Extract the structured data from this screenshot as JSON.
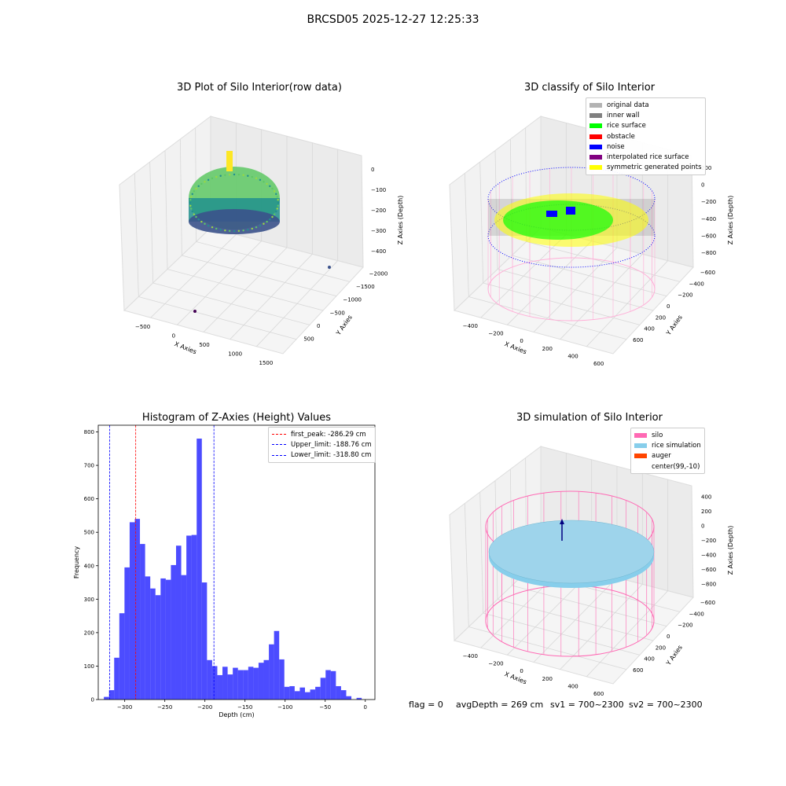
{
  "suptitle": "BRCSD05 2025-12-27 12:25:33",
  "footer": {
    "flag": "flag = 0",
    "avg": "avgDepth = 269 cm",
    "sv1": "sv1 = 700~2300",
    "sv2": "sv2 = 700~2300"
  },
  "panel1": {
    "title": "3D Plot of Silo Interior(row data)",
    "xlabel": "X Axies",
    "ylabel": "Y Axies",
    "zlabel": "Z Axies (Depth)",
    "xticks": [
      "−500",
      "0",
      "500",
      "1000",
      "1500"
    ],
    "yticks": [
      "500",
      "0",
      "−500",
      "−1000",
      "−1500",
      "−2000"
    ],
    "zticks": [
      "0",
      "−100",
      "−200",
      "−300",
      "−400"
    ]
  },
  "panel2": {
    "title": "3D classify of Silo Interior",
    "xlabel": "X Axies",
    "ylabel": "Y Axies",
    "zlabel": "Z Axies (Depth)",
    "xticks": [
      "−400",
      "−200",
      "0",
      "200",
      "400",
      "600"
    ],
    "yticks": [
      "600",
      "400",
      "200",
      "0",
      "−200",
      "−400",
      "−600"
    ],
    "zticks": [
      "200",
      "0",
      "−200",
      "−400",
      "−600",
      "−800"
    ],
    "legend": [
      {
        "label": "original data",
        "color": "#b3b3b3"
      },
      {
        "label": "inner wall",
        "color": "#808080"
      },
      {
        "label": "rice surface",
        "color": "#00ff00"
      },
      {
        "label": "obstacle",
        "color": "#ff0000"
      },
      {
        "label": "noise",
        "color": "#0000ff"
      },
      {
        "label": "interpolated rice surface",
        "color": "#800080"
      },
      {
        "label": "symmetric generated points",
        "color": "#ffff00"
      }
    ]
  },
  "panel4": {
    "title": "3D simulation of Silo Interior",
    "xlabel": "X Axies",
    "ylabel": "Y Axies",
    "zlabel": "Z Axies (Depth)",
    "xticks": [
      "−400",
      "−200",
      "0",
      "200",
      "400",
      "600"
    ],
    "yticks": [
      "600",
      "400",
      "200",
      "0",
      "−200",
      "−400",
      "−600"
    ],
    "zticks": [
      "400",
      "200",
      "0",
      "−200",
      "−400",
      "−600",
      "−800"
    ],
    "legend": [
      {
        "label": "silo",
        "color": "#ff69b4"
      },
      {
        "label": "rice simulation",
        "color": "#87ceeb"
      },
      {
        "label": "auger",
        "color": "#ff4500"
      },
      {
        "label": "center(99,-10)",
        "color": ""
      }
    ]
  },
  "chart_data": {
    "type": "bar",
    "title": "Histogram of Z-Axies (Height) Values",
    "xlabel": "Depth (cm)",
    "ylabel": "Frequency",
    "xlim": [
      -333,
      12
    ],
    "ylim": [
      0,
      820
    ],
    "xticks": [
      -300,
      -250,
      -200,
      -150,
      -100,
      -50,
      0
    ],
    "yticks": [
      0,
      100,
      200,
      300,
      400,
      500,
      600,
      700,
      800
    ],
    "bin_start": -326.0,
    "bin_width": 6.43,
    "values": [
      8,
      28,
      125,
      258,
      395,
      530,
      540,
      465,
      368,
      332,
      312,
      362,
      358,
      402,
      460,
      372,
      490,
      492,
      780,
      350,
      118,
      100,
      73,
      98,
      75,
      95,
      88,
      88,
      98,
      95,
      110,
      118,
      165,
      205,
      120,
      38,
      40,
      25,
      36,
      22,
      30,
      38,
      65,
      88,
      85,
      40,
      28,
      10,
      0,
      5
    ],
    "bar_color": "#0000ff",
    "lines": [
      {
        "label": "first_peak: -286.29 cm",
        "x": -286.29,
        "color": "#ff0000"
      },
      {
        "label": "Upper_limit: -188.76 cm",
        "x": -188.76,
        "color": "#0000ff"
      },
      {
        "label": "Lower_limit: -318.80 cm",
        "x": -318.8,
        "color": "#0000ff"
      }
    ],
    "legend_position": "top-right",
    "grid": false
  }
}
